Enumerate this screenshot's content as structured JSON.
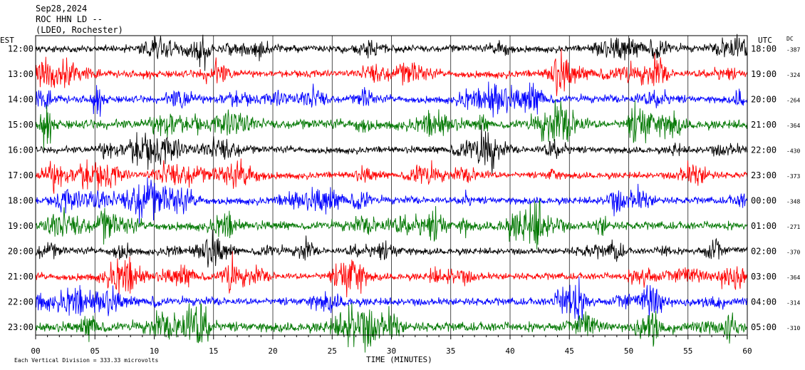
{
  "header": {
    "date": "Sep28,2024",
    "station": "ROC HHN LD --",
    "network": "(LDEO, Rochester)"
  },
  "chart_data": {
    "type": "line",
    "title": "",
    "xlabel": "TIME (MINUTES)",
    "ylabel": "",
    "xlim": [
      0,
      60
    ],
    "x_ticks": [
      "00",
      "05",
      "10",
      "15",
      "20",
      "25",
      "30",
      "35",
      "40",
      "45",
      "50",
      "55",
      "60"
    ],
    "left_axis_label": "EST",
    "right_axis_label": "UTC",
    "dc_label": "DC",
    "grid": true,
    "series": [
      {
        "est": "12:00",
        "utc": "18:00",
        "dc": "-387",
        "color": "#000000",
        "amplitude": 0.55
      },
      {
        "est": "13:00",
        "utc": "19:00",
        "dc": "-324",
        "color": "#ff0000",
        "amplitude": 0.6
      },
      {
        "est": "14:00",
        "utc": "20:00",
        "dc": "-264",
        "color": "#0000ff",
        "amplitude": 0.6
      },
      {
        "est": "15:00",
        "utc": "21:00",
        "dc": "-364",
        "color": "#007700",
        "amplitude": 0.75
      },
      {
        "est": "16:00",
        "utc": "22:00",
        "dc": "-430",
        "color": "#000000",
        "amplitude": 0.55
      },
      {
        "est": "17:00",
        "utc": "23:00",
        "dc": "-373",
        "color": "#ff0000",
        "amplitude": 0.55
      },
      {
        "est": "18:00",
        "utc": "00:00",
        "dc": "-348",
        "color": "#0000ff",
        "amplitude": 0.6
      },
      {
        "est": "19:00",
        "utc": "01:00",
        "dc": "-271",
        "color": "#007700",
        "amplitude": 0.7
      },
      {
        "est": "20:00",
        "utc": "02:00",
        "dc": "-370",
        "color": "#000000",
        "amplitude": 0.55
      },
      {
        "est": "21:00",
        "utc": "03:00",
        "dc": "-364",
        "color": "#ff0000",
        "amplitude": 0.6
      },
      {
        "est": "22:00",
        "utc": "04:00",
        "dc": "-314",
        "color": "#0000ff",
        "amplitude": 0.65
      },
      {
        "est": "23:00",
        "utc": "05:00",
        "dc": "-310",
        "color": "#007700",
        "amplitude": 0.8
      }
    ],
    "footnote": "Each Vertical Division =  333.33 microvolts"
  }
}
